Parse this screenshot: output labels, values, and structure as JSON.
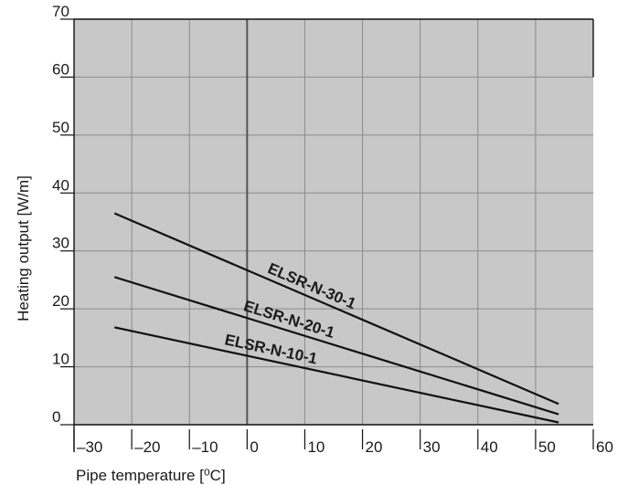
{
  "chart_data": {
    "type": "line",
    "xlabel": "Pipe temperature [⁰C]",
    "ylabel": "Heating output [W/m]",
    "xlim": [
      -30,
      60
    ],
    "ylim": [
      0,
      70
    ],
    "x_ticks": [
      -30,
      -20,
      -10,
      0,
      10,
      20,
      30,
      40,
      50,
      60
    ],
    "y_ticks": [
      0,
      10,
      20,
      30,
      40,
      50,
      60,
      70
    ],
    "x_tick_labels": [
      "–30",
      "–20",
      "–10",
      "0",
      "10",
      "20",
      "30",
      "40",
      "50",
      "60"
    ],
    "y_tick_labels": [
      "0",
      "10",
      "20",
      "30",
      "40",
      "50",
      "60",
      "70"
    ],
    "grid": true,
    "legend": "none",
    "plot_background": "#c8c8c8",
    "grid_color": "#8a8a8a",
    "zero_line_color": "#555555",
    "line_color": "#111111",
    "series": [
      {
        "name": "ELSR-N-30-1",
        "x": [
          -23,
          54
        ],
        "y": [
          36.5,
          3.6
        ]
      },
      {
        "name": "ELSR-N-20-1",
        "x": [
          -23,
          54
        ],
        "y": [
          25.5,
          1.8
        ]
      },
      {
        "name": "ELSR-N-10-1",
        "x": [
          -23,
          54
        ],
        "y": [
          16.8,
          0.4
        ]
      }
    ]
  }
}
